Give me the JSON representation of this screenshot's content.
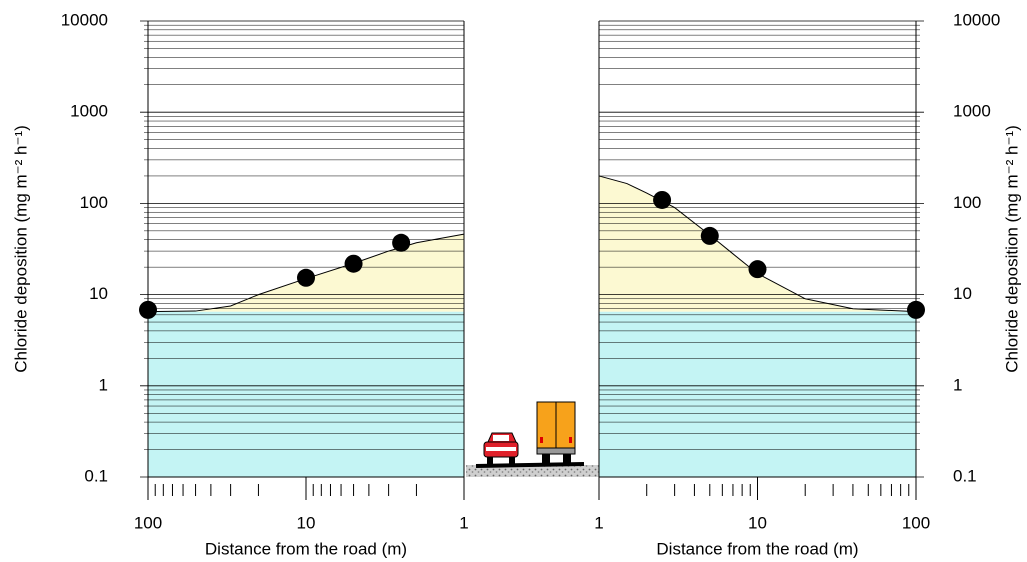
{
  "chart_data": [
    {
      "type": "scatter",
      "y_axis_side": "left",
      "log_x": true,
      "log_y": true,
      "grid": true,
      "minor_grid": true,
      "xlabel": "Distance from the road (m)",
      "ylabel": "Chloride deposition (mg m⁻² h⁻¹)",
      "xlim": [
        100,
        1
      ],
      "xticks": [
        100,
        10,
        1
      ],
      "ylim": [
        0.1,
        10000
      ],
      "yticks": [
        0.1,
        1,
        10,
        100,
        1000,
        10000
      ],
      "background_level": 6.5,
      "background_color": "#c4f4f4",
      "excess_color": "#fcf9d2",
      "curve": {
        "color": "#000000",
        "x": [
          100,
          50,
          30,
          20,
          10,
          5,
          3,
          2,
          1
        ],
        "values": [
          6.5,
          6.6,
          7.5,
          10,
          15,
          22,
          30,
          37,
          46
        ]
      },
      "points": {
        "color": "#000000",
        "x": [
          100,
          10,
          5,
          2.5
        ],
        "values": [
          6.8,
          15.3,
          21.8,
          37
        ]
      }
    },
    {
      "type": "scatter",
      "y_axis_side": "right",
      "log_x": true,
      "log_y": true,
      "grid": true,
      "minor_grid": true,
      "xlabel": "Distance from the road (m)",
      "ylabel": "Chloride deposition (mg m⁻² h⁻¹)",
      "xlim": [
        1,
        100
      ],
      "xticks": [
        1,
        10,
        100
      ],
      "ylim": [
        0.1,
        10000
      ],
      "yticks": [
        0.1,
        1,
        10,
        100,
        1000,
        10000
      ],
      "background_level": 6.5,
      "background_color": "#c4f4f4",
      "excess_color": "#fcf9d2",
      "curve": {
        "color": "#000000",
        "x": [
          1,
          1.5,
          2,
          3,
          5,
          7,
          10,
          20,
          40,
          100
        ],
        "values": [
          200,
          165,
          130,
          90,
          45,
          28,
          17,
          9,
          7,
          6.5
        ]
      },
      "points": {
        "color": "#000000",
        "x": [
          2.5,
          5,
          10,
          100
        ],
        "values": [
          109,
          44,
          19,
          6.8
        ]
      }
    }
  ]
}
